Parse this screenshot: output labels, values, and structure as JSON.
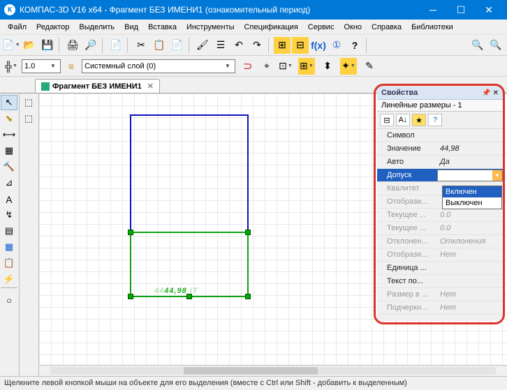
{
  "titlebar": {
    "text": "КОМПАС-3D V16  x64 - Фрагмент БЕЗ ИМЕНИ1 (ознакомительный период)"
  },
  "menu": [
    "Файл",
    "Редактор",
    "Выделить",
    "Вид",
    "Вставка",
    "Инструменты",
    "Спецификация",
    "Сервис",
    "Окно",
    "Справка",
    "Библиотеки"
  ],
  "tb2": {
    "scale": "1.0",
    "layer": "Системный слой (0)"
  },
  "tab": {
    "label": "Фрагмент БЕЗ ИМЕНИ1"
  },
  "dim": {
    "value": "44,98"
  },
  "props": {
    "title": "Свойства",
    "subtitle": "Линейные размеры - 1",
    "rows": [
      {
        "n": "Символ",
        "v": ""
      },
      {
        "n": "Значение",
        "v": "44,98"
      },
      {
        "n": "Авто",
        "v": "Да"
      },
      {
        "n": "Допуск",
        "v": "Выключен",
        "sel": true,
        "dd": true
      },
      {
        "n": "Квалитет",
        "v": "",
        "dis": true
      },
      {
        "n": "Отобрази...",
        "v": "",
        "dis": true
      },
      {
        "n": "Текущее ...",
        "v": "0.0",
        "dis": true
      },
      {
        "n": "Текущее ...",
        "v": "0.0",
        "dis": true
      },
      {
        "n": "Отклонен...",
        "v": "Отклонения",
        "dis": true
      },
      {
        "n": "Отобрази...",
        "v": "Нет",
        "dis": true
      },
      {
        "n": "Единица ...",
        "v": ""
      },
      {
        "n": "Текст по...",
        "v": ""
      },
      {
        "n": "Размер в ...",
        "v": "Нет",
        "dis": true
      },
      {
        "n": "Подчеркн...",
        "v": "Нет",
        "dis": true
      }
    ],
    "ddopts": [
      "Включен",
      "Выключен"
    ]
  },
  "status": "Щелкните левой кнопкой мыши на объекте для его выделения (вместе с Ctrl или Shift - добавить к выделенным)"
}
